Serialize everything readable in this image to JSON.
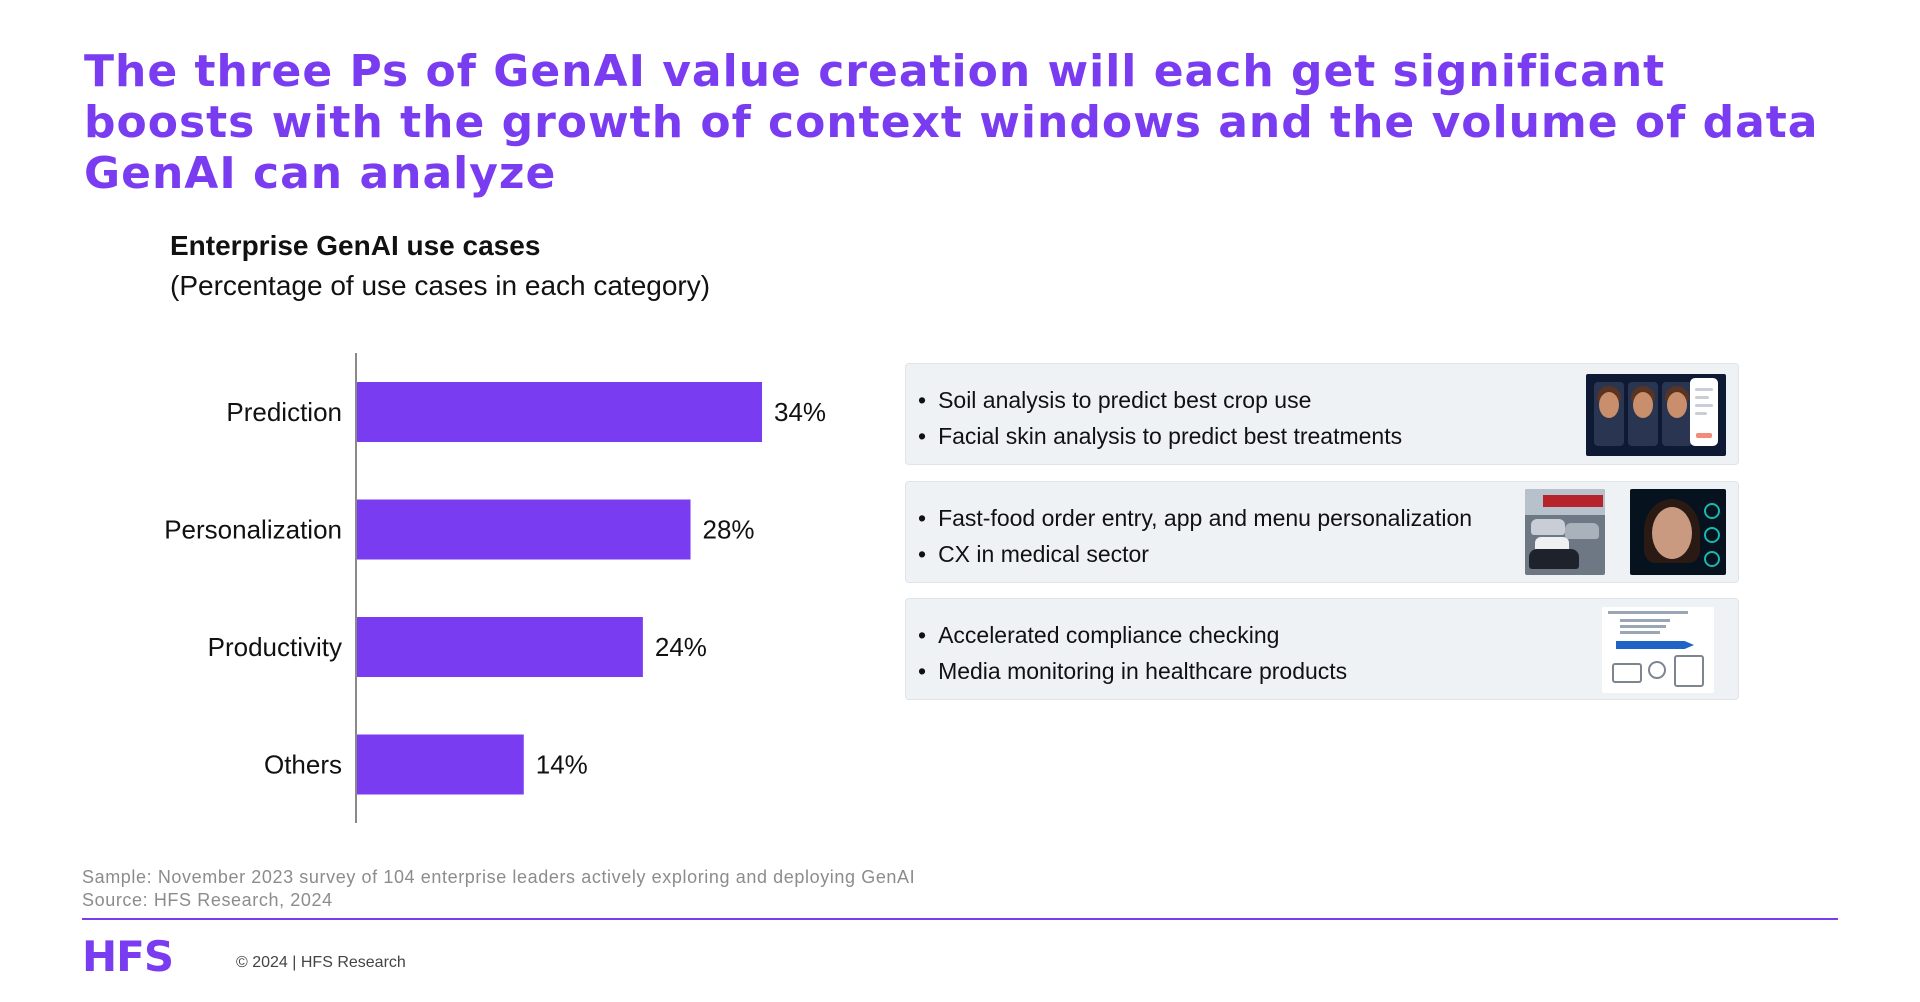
{
  "headline": "The three Ps of GenAI value creation will each get significant boosts with the growth of context windows and the volume of data GenAI can analyze",
  "chart_data": {
    "type": "bar",
    "orientation": "horizontal",
    "title": "Enterprise GenAI use cases",
    "subtitle": "(Percentage of use cases in each category)",
    "categories": [
      "Prediction",
      "Personalization",
      "Productivity",
      "Others"
    ],
    "values": [
      34,
      28,
      24,
      14
    ],
    "value_labels": [
      "34%",
      "28%",
      "24%",
      "14%"
    ],
    "xlim": [
      0,
      40
    ],
    "grid": false,
    "bar_color": "#7a3cf0"
  },
  "use_cases": [
    {
      "items": [
        "Soil analysis to predict best crop use",
        "Facial skin analysis to predict best treatments"
      ],
      "image_icon": "face-analysis-app-image"
    },
    {
      "items": [
        "Fast-food order entry, app and menu personalization",
        "CX in medical sector"
      ],
      "image_icon": "drive-thru-and-digital-avatar-image"
    },
    {
      "items": [
        "Accelerated compliance checking",
        "Media monitoring in healthcare products"
      ],
      "image_icon": "compliance-workflow-diagram-image"
    }
  ],
  "footer": {
    "sample": "Sample: November 2023 survey of 104 enterprise leaders actively exploring and deploying GenAI",
    "source": "Source: HFS Research, 2024",
    "logo": "HFS",
    "copyright": "© 2024 | HFS Research"
  },
  "colors": {
    "accent": "#7a3cf0",
    "case_box_bg": "#eff2f5",
    "footnote_text": "#8c8c8c"
  }
}
